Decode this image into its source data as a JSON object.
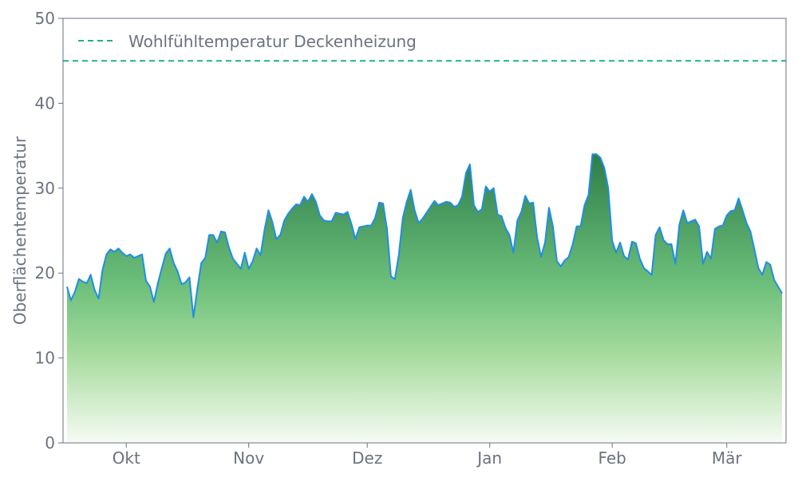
{
  "chart_data": {
    "type": "area",
    "ylabel": "Oberflächentemperatur",
    "xlabel": "",
    "ylim": [
      0,
      50
    ],
    "yticks": [
      0,
      10,
      20,
      30,
      40,
      50
    ],
    "xlim": [
      "2023-09-15",
      "2024-03-16"
    ],
    "xticks": [
      {
        "date": "2023-10-01",
        "label": "Okt"
      },
      {
        "date": "2023-11-01",
        "label": "Nov"
      },
      {
        "date": "2023-12-01",
        "label": "Dez"
      },
      {
        "date": "2024-01-01",
        "label": "Jan"
      },
      {
        "date": "2024-02-01",
        "label": "Feb"
      },
      {
        "date": "2024-03-01",
        "label": "Mär"
      }
    ],
    "grid": false,
    "legend": {
      "position": "top-left",
      "entries": [
        "Wohlfühltemperatur Deckenheizung"
      ]
    },
    "reference_line": {
      "name": "Wohlfühltemperatur Deckenheizung",
      "value": 45,
      "color": "#1db386",
      "style": "dashed"
    },
    "series": [
      {
        "line_color": "#1f8ee6",
        "fill_gradient": [
          "#2e7d4a",
          "#f7fbf5"
        ],
        "x_start": "2023-09-16",
        "x_step_days": 1,
        "values": [
          18.4,
          16.8,
          17.8,
          19.3,
          19.0,
          18.8,
          19.8,
          18.0,
          17.0,
          20.4,
          22.2,
          22.8,
          22.5,
          22.9,
          22.4,
          22.0,
          22.2,
          21.8,
          22.0,
          22.2,
          19.1,
          18.4,
          16.6,
          18.8,
          20.6,
          22.3,
          22.9,
          21.2,
          20.2,
          18.7,
          18.9,
          19.5,
          14.8,
          18.2,
          21.2,
          21.8,
          24.5,
          24.5,
          23.6,
          24.9,
          24.8,
          23.0,
          21.7,
          21.1,
          20.5,
          22.4,
          20.5,
          21.4,
          22.9,
          22.1,
          25.1,
          27.4,
          26.0,
          24.0,
          24.5,
          26.2,
          27.0,
          27.6,
          28.1,
          28.0,
          29.0,
          28.4,
          29.3,
          28.4,
          26.8,
          26.2,
          26.1,
          26.1,
          27.1,
          27.0,
          26.9,
          27.2,
          25.8,
          24.0,
          25.4,
          25.5,
          25.6,
          25.6,
          26.5,
          28.3,
          28.2,
          25.2,
          19.6,
          19.3,
          22.2,
          26.5,
          28.4,
          29.8,
          27.4,
          25.9,
          26.4,
          27.1,
          27.8,
          28.5,
          28.0,
          28.2,
          28.4,
          28.3,
          27.8,
          28.0,
          29.0,
          31.8,
          32.8,
          28.0,
          27.2,
          27.5,
          30.2,
          29.6,
          30.0,
          26.9,
          26.7,
          25.3,
          24.5,
          22.4,
          26.2,
          27.2,
          29.1,
          28.2,
          28.3,
          24.2,
          21.9,
          23.6,
          27.7,
          25.5,
          21.4,
          20.8,
          21.5,
          21.9,
          23.4,
          25.5,
          25.5,
          28.0,
          29.2,
          34.0,
          34.0,
          33.6,
          32.4,
          30.0,
          23.8,
          22.4,
          23.6,
          22.0,
          21.6,
          23.7,
          23.5,
          21.7,
          20.6,
          20.2,
          19.8,
          24.5,
          25.4,
          23.9,
          23.4,
          23.4,
          21.1,
          25.7,
          27.4,
          25.9,
          26.1,
          26.3,
          25.5,
          21.1,
          22.5,
          21.7,
          25.2,
          25.5,
          25.6,
          26.8,
          27.3,
          27.4,
          28.8,
          27.4,
          25.9,
          24.9,
          22.8,
          20.6,
          19.8,
          21.3,
          21.0,
          19.2,
          18.4,
          17.6
        ]
      }
    ],
    "colors": {
      "axis": "#6b7280",
      "text": "#6b7280"
    }
  }
}
